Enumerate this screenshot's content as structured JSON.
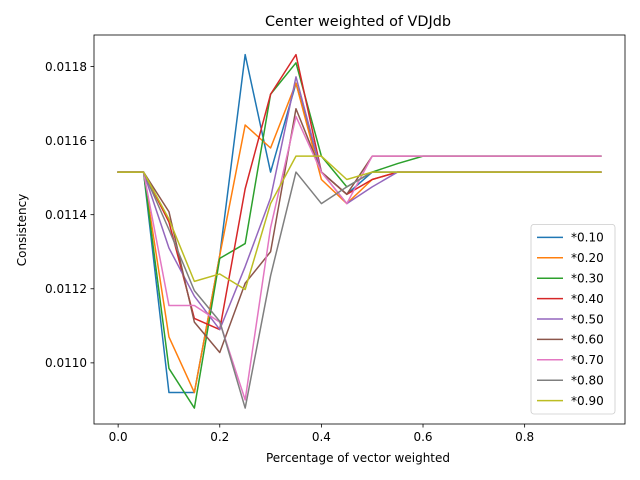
{
  "chart_data": {
    "type": "line",
    "title": "Center weighted of VDJdb",
    "xlabel": "Percentage of vector weighted",
    "ylabel": "Consistency",
    "xlim": [
      -0.0475,
      0.9975
    ],
    "ylim": [
      0.010835,
      0.011885
    ],
    "xticks": [
      0.0,
      0.2,
      0.4,
      0.6,
      0.8
    ],
    "xtick_labels": [
      "0.0",
      "0.2",
      "0.4",
      "0.6",
      "0.8"
    ],
    "yticks": [
      0.011,
      0.0112,
      0.0114,
      0.0116,
      0.0118
    ],
    "ytick_labels": [
      "0.0110",
      "0.0112",
      "0.0114",
      "0.0116",
      "0.0118"
    ],
    "grid": false,
    "legend_position": "lower-right",
    "x": [
      0.0,
      0.05,
      0.1,
      0.15,
      0.2,
      0.25,
      0.3,
      0.35,
      0.4,
      0.45,
      0.5,
      0.55,
      0.6,
      0.65,
      0.7,
      0.75,
      0.8,
      0.85,
      0.9,
      0.95
    ],
    "series": [
      {
        "name": "*0.10",
        "color": "#1f77b4",
        "values": [
          0.011515,
          0.011515,
          0.01092,
          0.01092,
          0.01129,
          0.011832,
          0.011515,
          0.011755,
          0.011515,
          0.011455,
          0.011515,
          0.011515,
          0.011515,
          0.011515,
          0.011515,
          0.011515,
          0.011515,
          0.011515,
          0.011515,
          0.011515
        ]
      },
      {
        "name": "*0.20",
        "color": "#ff7f0e",
        "values": [
          0.011515,
          0.011515,
          0.01107,
          0.01092,
          0.01129,
          0.011642,
          0.01158,
          0.011755,
          0.011495,
          0.01143,
          0.011495,
          0.011515,
          0.011515,
          0.011515,
          0.011515,
          0.011515,
          0.011515,
          0.011515,
          0.011515,
          0.011515
        ]
      },
      {
        "name": "*0.30",
        "color": "#2ca02c",
        "values": [
          0.011515,
          0.011515,
          0.010985,
          0.010878,
          0.011282,
          0.011322,
          0.011725,
          0.01181,
          0.011558,
          0.011475,
          0.011515,
          0.011538,
          0.011558,
          0.011558,
          0.011558,
          0.011558,
          0.011558,
          0.011558,
          0.011558,
          0.011558
        ]
      },
      {
        "name": "*0.40",
        "color": "#d62728",
        "values": [
          0.011515,
          0.011515,
          0.01138,
          0.01112,
          0.01109,
          0.01147,
          0.011725,
          0.011832,
          0.011515,
          0.011455,
          0.011495,
          0.011515,
          0.011515,
          0.011515,
          0.011515,
          0.011515,
          0.011515,
          0.011515,
          0.011515,
          0.011515
        ]
      },
      {
        "name": "*0.50",
        "color": "#9467bd",
        "values": [
          0.011515,
          0.011515,
          0.01131,
          0.01118,
          0.01109,
          0.01126,
          0.011445,
          0.011772,
          0.011515,
          0.01143,
          0.011475,
          0.011515,
          0.011515,
          0.011515,
          0.011515,
          0.011515,
          0.011515,
          0.011515,
          0.011515,
          0.011515
        ]
      },
      {
        "name": "*0.60",
        "color": "#8c564b",
        "values": [
          0.011515,
          0.011515,
          0.011408,
          0.01111,
          0.011028,
          0.011215,
          0.0113,
          0.011686,
          0.011515,
          0.011455,
          0.011558,
          0.011558,
          0.011558,
          0.011558,
          0.011558,
          0.011558,
          0.011558,
          0.011558,
          0.011558,
          0.011558
        ]
      },
      {
        "name": "*0.70",
        "color": "#e377c2",
        "values": [
          0.011515,
          0.011515,
          0.011155,
          0.011155,
          0.01111,
          0.0109,
          0.011365,
          0.011665,
          0.011515,
          0.01143,
          0.011558,
          0.011558,
          0.011558,
          0.011558,
          0.011558,
          0.011558,
          0.011558,
          0.011558,
          0.011558,
          0.011558
        ]
      },
      {
        "name": "*0.80",
        "color": "#7f7f7f",
        "values": [
          0.011515,
          0.011515,
          0.01136,
          0.011195,
          0.011112,
          0.010878,
          0.011235,
          0.011515,
          0.01143,
          0.011475,
          0.011515,
          0.011515,
          0.011515,
          0.011515,
          0.011515,
          0.011515,
          0.011515,
          0.011515,
          0.011515,
          0.011515
        ]
      },
      {
        "name": "*0.90",
        "color": "#bcbd22",
        "values": [
          0.011515,
          0.011515,
          0.011388,
          0.01122,
          0.01124,
          0.011198,
          0.01143,
          0.011558,
          0.011558,
          0.011495,
          0.011515,
          0.011515,
          0.011515,
          0.011515,
          0.011515,
          0.011515,
          0.011515,
          0.011515,
          0.011515,
          0.011515
        ]
      }
    ]
  }
}
